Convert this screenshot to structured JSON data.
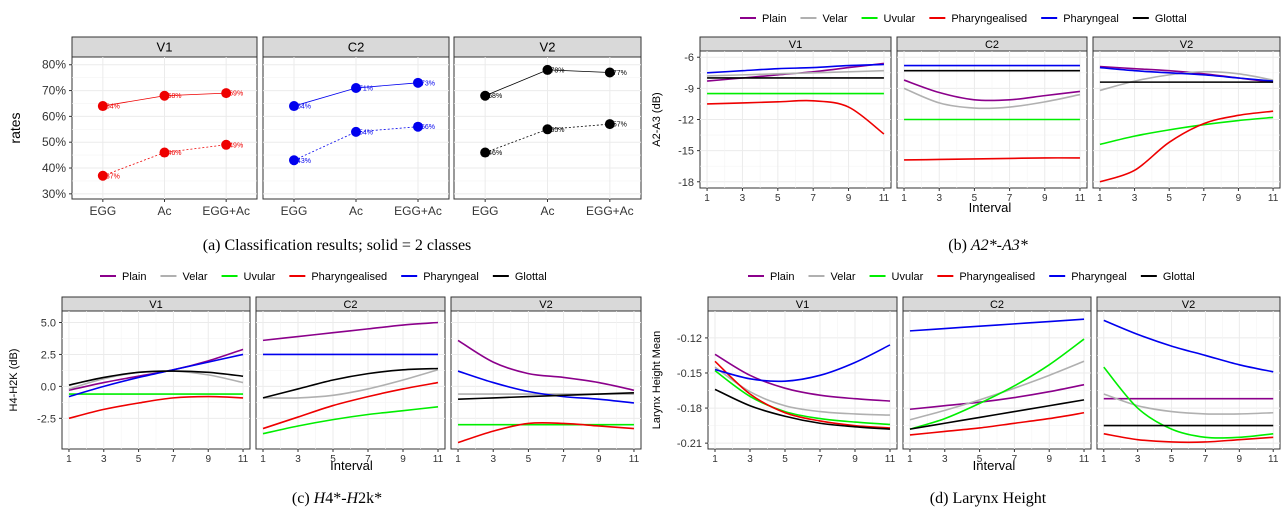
{
  "captions": {
    "a": "(a) Classification results; solid = 2 classes",
    "b_pre": "(b) ",
    "b_em": "A2*-A3*",
    "c_pre": "(c) ",
    "c_em1": "H",
    "c_mid": "4*-",
    "c_em2": "H",
    "c_post": "2k*",
    "d": "(d) Larynx Height"
  },
  "colors": {
    "Plain": "#8b008b",
    "Velar": "#b0b0b0",
    "Uvular": "#00ee00",
    "Pharyngealised": "#ee0000",
    "Pharyngeal": "#0000ee",
    "Glottal": "#000000"
  },
  "chart_data": [
    {
      "id": "a",
      "type": "line",
      "ylabel": "rates",
      "ylim": [
        28,
        83
      ],
      "yticks": [
        30,
        40,
        50,
        60,
        70,
        80
      ],
      "ytick_labels": [
        "30%",
        "40%",
        "50%",
        "60%",
        "70%",
        "80%"
      ],
      "categories": [
        "EGG",
        "Ac",
        "EGG+Ac"
      ],
      "facets": [
        {
          "title": "V1",
          "color": "#ee0000",
          "series": [
            {
              "style": "solid",
              "values": [
                64,
                68,
                69
              ],
              "labels": [
                "64%",
                "68%",
                "69%"
              ]
            },
            {
              "style": "dotted",
              "values": [
                37,
                46,
                49
              ],
              "labels": [
                "37%",
                "46%",
                "49%"
              ]
            }
          ]
        },
        {
          "title": "C2",
          "color": "#0000ee",
          "series": [
            {
              "style": "solid",
              "values": [
                64,
                71,
                73
              ],
              "labels": [
                "64%",
                "71%",
                "73%"
              ]
            },
            {
              "style": "dotted",
              "values": [
                43,
                54,
                56
              ],
              "labels": [
                "43%",
                "54%",
                "56%"
              ]
            }
          ]
        },
        {
          "title": "V2",
          "color": "#000000",
          "series": [
            {
              "style": "solid",
              "values": [
                68,
                78,
                77
              ],
              "labels": [
                "68%",
                "78%",
                "77%"
              ]
            },
            {
              "style": "dotted",
              "values": [
                46,
                55,
                57
              ],
              "labels": [
                "46%",
                "55%",
                "57%"
              ]
            }
          ]
        }
      ]
    },
    {
      "id": "b",
      "type": "line",
      "ylabel": "A2-A3 (dB)",
      "xlabel": "Interval",
      "ylim": [
        -18.6,
        -5.4
      ],
      "yticks": [
        -6,
        -9,
        -12,
        -15,
        -18
      ],
      "ytick_labels": [
        "-6",
        "-9",
        "-12",
        "-15",
        "-18"
      ],
      "xlim": [
        0.6,
        11.4
      ],
      "xticks": [
        1,
        3,
        5,
        7,
        9,
        11
      ],
      "xtick_labels": [
        "1",
        "3",
        "5",
        "7",
        "9",
        "11"
      ],
      "legend": [
        "Plain",
        "Velar",
        "Uvular",
        "Pharyngealised",
        "Pharyngeal",
        "Glottal"
      ],
      "x": [
        1,
        3,
        5,
        7,
        9,
        11
      ],
      "facets": [
        {
          "title": "V1",
          "series": [
            {
              "name": "Plain",
              "values": [
                -8.3,
                -8.0,
                -7.7,
                -7.4,
                -7.0,
                -6.6
              ]
            },
            {
              "name": "Velar",
              "values": [
                -7.8,
                -7.7,
                -7.6,
                -7.5,
                -7.4,
                -7.3
              ]
            },
            {
              "name": "Uvular",
              "values": [
                -9.5,
                -9.5,
                -9.5,
                -9.5,
                -9.5,
                -9.5
              ]
            },
            {
              "name": "Pharyngealised",
              "values": [
                -10.5,
                -10.4,
                -10.3,
                -10.2,
                -10.8,
                -13.4
              ]
            },
            {
              "name": "Pharyngeal",
              "values": [
                -7.5,
                -7.3,
                -7.1,
                -7.0,
                -6.8,
                -6.7
              ]
            },
            {
              "name": "Glottal",
              "values": [
                -8.0,
                -8.0,
                -8.0,
                -8.0,
                -8.0,
                -8.0
              ]
            }
          ]
        },
        {
          "title": "C2",
          "series": [
            {
              "name": "Plain",
              "values": [
                -8.2,
                -9.4,
                -10.1,
                -10.1,
                -9.7,
                -9.3
              ]
            },
            {
              "name": "Velar",
              "values": [
                -9.0,
                -10.4,
                -10.9,
                -10.8,
                -10.3,
                -9.6
              ]
            },
            {
              "name": "Uvular",
              "values": [
                -12.0,
                -12.0,
                -12.0,
                -12.0,
                -12.0,
                -12.0
              ]
            },
            {
              "name": "Pharyngealised",
              "values": [
                -15.9,
                -15.85,
                -15.8,
                -15.75,
                -15.7,
                -15.7
              ]
            },
            {
              "name": "Pharyngeal",
              "values": [
                -6.8,
                -6.8,
                -6.8,
                -6.8,
                -6.8,
                -6.8
              ]
            },
            {
              "name": "Glottal",
              "values": [
                -7.3,
                -7.3,
                -7.3,
                -7.3,
                -7.3,
                -7.3
              ]
            }
          ]
        },
        {
          "title": "V2",
          "series": [
            {
              "name": "Plain",
              "values": [
                -6.9,
                -7.1,
                -7.3,
                -7.6,
                -8.0,
                -8.4
              ]
            },
            {
              "name": "Velar",
              "values": [
                -9.2,
                -8.3,
                -7.7,
                -7.4,
                -7.6,
                -8.2
              ]
            },
            {
              "name": "Uvular",
              "values": [
                -14.4,
                -13.6,
                -13.0,
                -12.5,
                -12.1,
                -11.8
              ]
            },
            {
              "name": "Pharyngealised",
              "values": [
                -18.0,
                -16.9,
                -14.2,
                -12.4,
                -11.6,
                -11.2
              ]
            },
            {
              "name": "Pharyngeal",
              "values": [
                -7.0,
                -7.3,
                -7.5,
                -7.7,
                -8.0,
                -8.3
              ]
            },
            {
              "name": "Glottal",
              "values": [
                -8.4,
                -8.4,
                -8.4,
                -8.4,
                -8.4,
                -8.4
              ]
            }
          ]
        }
      ]
    },
    {
      "id": "c",
      "type": "line",
      "ylabel": "H4-H2K (dB)",
      "xlabel": "Interval",
      "ylim": [
        -4.9,
        5.9
      ],
      "yticks": [
        5,
        2.5,
        0,
        -2.5
      ],
      "ytick_labels": [
        "5.0",
        "2.5",
        "0.0",
        "-2.5"
      ],
      "xlim": [
        0.6,
        11.4
      ],
      "xticks": [
        1,
        3,
        5,
        7,
        9,
        11
      ],
      "xtick_labels": [
        "1",
        "3",
        "5",
        "7",
        "9",
        "11"
      ],
      "legend": [
        "Plain",
        "Velar",
        "Uvular",
        "Pharyngealised",
        "Pharyngeal",
        "Glottal"
      ],
      "x": [
        1,
        3,
        5,
        7,
        9,
        11
      ],
      "facets": [
        {
          "title": "V1",
          "series": [
            {
              "name": "Plain",
              "values": [
                -0.3,
                0.3,
                0.8,
                1.3,
                2.0,
                2.9
              ]
            },
            {
              "name": "Velar",
              "values": [
                -0.2,
                0.6,
                1.1,
                1.2,
                0.9,
                0.3
              ]
            },
            {
              "name": "Uvular",
              "values": [
                -0.6,
                -0.6,
                -0.6,
                -0.6,
                -0.6,
                -0.6
              ]
            },
            {
              "name": "Pharyngealised",
              "values": [
                -2.5,
                -1.8,
                -1.3,
                -0.9,
                -0.8,
                -0.9
              ]
            },
            {
              "name": "Pharyngeal",
              "values": [
                -0.8,
                0.0,
                0.7,
                1.3,
                1.9,
                2.5
              ]
            },
            {
              "name": "Glottal",
              "values": [
                0.1,
                0.7,
                1.1,
                1.2,
                1.1,
                0.8
              ]
            }
          ]
        },
        {
          "title": "C2",
          "series": [
            {
              "name": "Plain",
              "values": [
                3.6,
                3.9,
                4.2,
                4.5,
                4.8,
                5.0
              ]
            },
            {
              "name": "Velar",
              "values": [
                -0.9,
                -0.9,
                -0.7,
                -0.2,
                0.5,
                1.3
              ]
            },
            {
              "name": "Uvular",
              "values": [
                -3.7,
                -3.1,
                -2.6,
                -2.2,
                -1.9,
                -1.6
              ]
            },
            {
              "name": "Pharyngealised",
              "values": [
                -3.3,
                -2.4,
                -1.5,
                -0.8,
                -0.2,
                0.3
              ]
            },
            {
              "name": "Pharyngeal",
              "values": [
                2.5,
                2.5,
                2.5,
                2.5,
                2.5,
                2.5
              ]
            },
            {
              "name": "Glottal",
              "values": [
                -0.9,
                -0.2,
                0.5,
                1.0,
                1.3,
                1.4
              ]
            }
          ]
        },
        {
          "title": "V2",
          "series": [
            {
              "name": "Plain",
              "values": [
                3.6,
                1.9,
                1.0,
                0.7,
                0.3,
                -0.3
              ]
            },
            {
              "name": "Velar",
              "values": [
                -0.6,
                -0.6,
                -0.6,
                -0.6,
                -0.6,
                -0.6
              ]
            },
            {
              "name": "Uvular",
              "values": [
                -3.0,
                -3.0,
                -3.0,
                -3.0,
                -3.0,
                -3.0
              ]
            },
            {
              "name": "Pharyngealised",
              "values": [
                -4.4,
                -3.5,
                -2.9,
                -2.9,
                -3.1,
                -3.3
              ]
            },
            {
              "name": "Pharyngeal",
              "values": [
                1.2,
                0.3,
                -0.4,
                -0.8,
                -1.0,
                -1.3
              ]
            },
            {
              "name": "Glottal",
              "values": [
                -1.0,
                -0.9,
                -0.8,
                -0.7,
                -0.6,
                -0.5
              ]
            }
          ]
        }
      ]
    },
    {
      "id": "d",
      "type": "line",
      "ylabel": "Larynx Height Mean",
      "xlabel": "Interval",
      "ylim": [
        -0.215,
        -0.097
      ],
      "yticks": [
        -0.12,
        -0.15,
        -0.18,
        -0.21
      ],
      "ytick_labels": [
        "-0.12",
        "-0.15",
        "-0.18",
        "-0.21"
      ],
      "xlim": [
        0.6,
        11.4
      ],
      "xticks": [
        1,
        3,
        5,
        7,
        9,
        11
      ],
      "xtick_labels": [
        "1",
        "3",
        "5",
        "7",
        "9",
        "11"
      ],
      "legend": [
        "Plain",
        "Velar",
        "Uvular",
        "Pharyngealised",
        "Pharyngeal",
        "Glottal"
      ],
      "x": [
        1,
        3,
        5,
        7,
        9,
        11
      ],
      "facets": [
        {
          "title": "V1",
          "series": [
            {
              "name": "Plain",
              "values": [
                -0.134,
                -0.152,
                -0.163,
                -0.169,
                -0.172,
                -0.174
              ]
            },
            {
              "name": "Velar",
              "values": [
                -0.145,
                -0.166,
                -0.178,
                -0.183,
                -0.185,
                -0.186
              ]
            },
            {
              "name": "Uvular",
              "values": [
                -0.148,
                -0.17,
                -0.183,
                -0.189,
                -0.192,
                -0.194
              ]
            },
            {
              "name": "Pharyngealised",
              "values": [
                -0.14,
                -0.168,
                -0.184,
                -0.191,
                -0.195,
                -0.197
              ]
            },
            {
              "name": "Pharyngeal",
              "values": [
                -0.147,
                -0.155,
                -0.157,
                -0.152,
                -0.141,
                -0.126
              ]
            },
            {
              "name": "Glottal",
              "values": [
                -0.164,
                -0.178,
                -0.187,
                -0.193,
                -0.196,
                -0.198
              ]
            }
          ]
        },
        {
          "title": "C2",
          "series": [
            {
              "name": "Plain",
              "values": [
                -0.181,
                -0.178,
                -0.175,
                -0.171,
                -0.166,
                -0.16
              ]
            },
            {
              "name": "Velar",
              "values": [
                -0.19,
                -0.182,
                -0.173,
                -0.163,
                -0.152,
                -0.14
              ]
            },
            {
              "name": "Uvular",
              "values": [
                -0.198,
                -0.189,
                -0.176,
                -0.161,
                -0.143,
                -0.121
              ]
            },
            {
              "name": "Pharyngealised",
              "values": [
                -0.203,
                -0.2,
                -0.197,
                -0.193,
                -0.189,
                -0.184
              ]
            },
            {
              "name": "Pharyngeal",
              "values": [
                -0.114,
                -0.112,
                -0.11,
                -0.108,
                -0.106,
                -0.104
              ]
            },
            {
              "name": "Glottal",
              "values": [
                -0.198,
                -0.193,
                -0.188,
                -0.183,
                -0.178,
                -0.173
              ]
            }
          ]
        },
        {
          "title": "V2",
          "series": [
            {
              "name": "Plain",
              "values": [
                -0.172,
                -0.172,
                -0.172,
                -0.172,
                -0.172,
                -0.172
              ]
            },
            {
              "name": "Velar",
              "values": [
                -0.168,
                -0.178,
                -0.183,
                -0.185,
                -0.185,
                -0.184
              ]
            },
            {
              "name": "Uvular",
              "values": [
                -0.145,
                -0.18,
                -0.198,
                -0.205,
                -0.205,
                -0.202
              ]
            },
            {
              "name": "Pharyngealised",
              "values": [
                -0.202,
                -0.207,
                -0.209,
                -0.209,
                -0.207,
                -0.205
              ]
            },
            {
              "name": "Pharyngeal",
              "values": [
                -0.105,
                -0.117,
                -0.127,
                -0.135,
                -0.143,
                -0.149
              ]
            },
            {
              "name": "Glottal",
              "values": [
                -0.195,
                -0.195,
                -0.195,
                -0.195,
                -0.195,
                -0.195
              ]
            }
          ]
        }
      ]
    }
  ]
}
